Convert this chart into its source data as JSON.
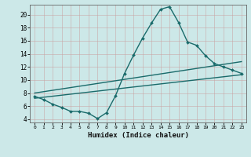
{
  "xlabel": "Humidex (Indice chaleur)",
  "bg_color": "#cce8e8",
  "line_color": "#1a6b6b",
  "grid_color": "#afd4d4",
  "ylim": [
    3.5,
    21.5
  ],
  "xlim": [
    -0.5,
    23.5
  ],
  "yticks": [
    4,
    6,
    8,
    10,
    12,
    14,
    16,
    18,
    20
  ],
  "xticks": [
    0,
    1,
    2,
    3,
    4,
    5,
    6,
    7,
    8,
    9,
    10,
    11,
    12,
    13,
    14,
    15,
    16,
    17,
    18,
    19,
    20,
    21,
    22,
    23
  ],
  "line1_x": [
    0,
    1,
    2,
    3,
    4,
    5,
    6,
    7,
    8,
    9,
    10,
    11,
    12,
    13,
    14,
    15,
    16,
    17,
    18,
    19,
    20,
    21,
    22,
    23
  ],
  "line1_y": [
    7.5,
    7.0,
    6.3,
    5.8,
    5.2,
    5.2,
    4.9,
    4.1,
    5.0,
    7.6,
    11.0,
    13.8,
    16.4,
    18.7,
    20.8,
    21.2,
    18.8,
    15.8,
    15.3,
    13.7,
    12.5,
    12.0,
    11.5,
    11.0
  ],
  "line2_x": [
    0,
    23
  ],
  "line2_y": [
    7.2,
    10.8
  ],
  "line3_x": [
    0,
    23
  ],
  "line3_y": [
    8.0,
    12.8
  ]
}
